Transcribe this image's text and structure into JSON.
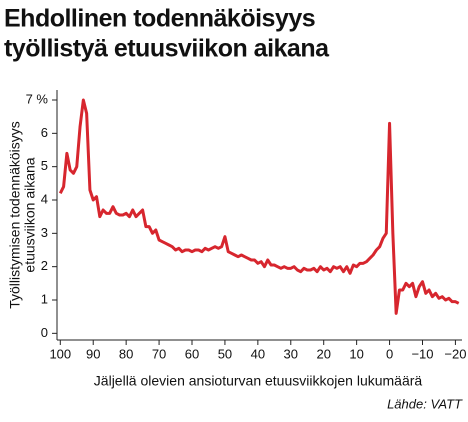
{
  "chart_data": {
    "type": "line",
    "title": [
      "Ehdollinen todennäköisyys",
      "työllistyä etuusviikon aikana"
    ],
    "ylabel": [
      "Työllistymisen todennäköisyys",
      "etuusviikon aikana"
    ],
    "xlabel": "Jäljellä olevien ansioturvan etuusviikkojen lukumäärä",
    "source": "Lähde: VATT",
    "x": [
      100,
      99,
      98,
      97,
      96,
      95,
      94,
      93,
      92,
      91,
      90,
      89,
      88,
      87,
      86,
      85,
      84,
      83,
      82,
      81,
      80,
      79,
      78,
      77,
      76,
      75,
      74,
      73,
      72,
      71,
      70,
      69,
      68,
      67,
      66,
      65,
      64,
      63,
      62,
      61,
      60,
      59,
      58,
      57,
      56,
      55,
      54,
      53,
      52,
      51,
      50,
      49,
      48,
      47,
      46,
      45,
      44,
      43,
      42,
      41,
      40,
      39,
      38,
      37,
      36,
      35,
      34,
      33,
      32,
      31,
      30,
      29,
      28,
      27,
      26,
      25,
      24,
      23,
      22,
      21,
      20,
      19,
      18,
      17,
      16,
      15,
      14,
      13,
      12,
      11,
      10,
      9,
      8,
      7,
      6,
      5,
      4,
      3,
      2,
      1,
      0,
      -1,
      -2,
      -3,
      -4,
      -5,
      -6,
      -7,
      -8,
      -9,
      -10,
      -11,
      -12,
      -13,
      -14,
      -15,
      -16,
      -17,
      -18,
      -19,
      -20,
      -21
    ],
    "series": [
      {
        "color": "#d7262e",
        "values": [
          4.2,
          4.4,
          5.4,
          4.9,
          4.8,
          5.0,
          6.2,
          7.0,
          6.6,
          4.3,
          4.0,
          4.1,
          3.5,
          3.7,
          3.6,
          3.6,
          3.8,
          3.6,
          3.55,
          3.55,
          3.6,
          3.5,
          3.7,
          3.5,
          3.6,
          3.7,
          3.2,
          3.2,
          3.0,
          3.1,
          2.8,
          2.75,
          2.7,
          2.65,
          2.6,
          2.5,
          2.55,
          2.45,
          2.5,
          2.5,
          2.45,
          2.5,
          2.5,
          2.45,
          2.55,
          2.5,
          2.55,
          2.6,
          2.55,
          2.6,
          2.9,
          2.45,
          2.4,
          2.35,
          2.3,
          2.35,
          2.3,
          2.25,
          2.2,
          2.2,
          2.1,
          2.15,
          2.0,
          2.2,
          2.05,
          2.05,
          2.0,
          1.95,
          2.0,
          1.95,
          1.95,
          2.0,
          1.9,
          1.85,
          1.95,
          1.9,
          1.9,
          1.95,
          1.85,
          2.0,
          1.9,
          1.95,
          1.85,
          2.0,
          1.95,
          2.0,
          1.85,
          2.0,
          1.8,
          2.05,
          2.0,
          2.1,
          2.1,
          2.15,
          2.25,
          2.35,
          2.5,
          2.6,
          2.85,
          3.0,
          6.3,
          3.0,
          0.6,
          1.3,
          1.3,
          1.5,
          1.4,
          1.5,
          1.1,
          1.4,
          1.55,
          1.2,
          1.3,
          1.1,
          1.2,
          1.05,
          1.1,
          1.0,
          1.05,
          0.95,
          0.95,
          0.9
        ]
      }
    ],
    "xlim": [
      101,
      -22
    ],
    "xticks": [
      100,
      90,
      80,
      70,
      60,
      50,
      40,
      30,
      20,
      10,
      0,
      {
        "value": -10,
        "label": "−10"
      },
      {
        "value": -20,
        "label": "−20"
      }
    ],
    "ylim": [
      -0.2,
      7.3
    ],
    "yticks": [
      0,
      1,
      2,
      3,
      4,
      5,
      6,
      {
        "value": 7,
        "label": "7 %"
      }
    ]
  }
}
